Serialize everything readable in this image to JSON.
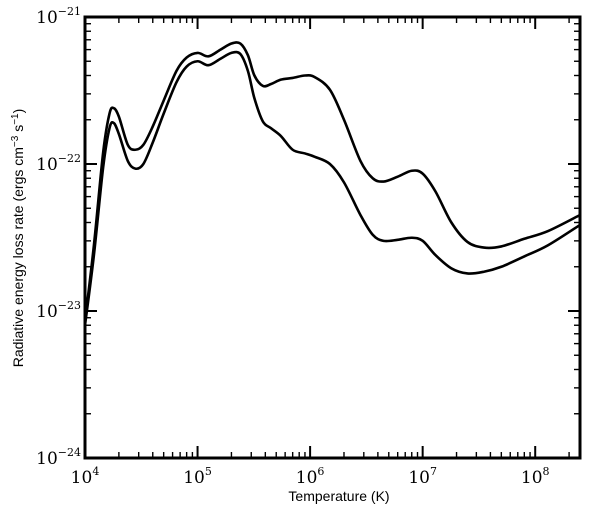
{
  "chart_data": {
    "type": "line",
    "xlabel": "Temperature (K)",
    "ylabel_text": "Radiative energy loss rate (ergs cm",
    "ylabel_exp1": "−3",
    "ylabel_mid": " s",
    "ylabel_exp2": "−1",
    "ylabel_tail": ")",
    "x_scale": "log",
    "y_scale": "log",
    "xlim": [
      10000,
      250000000
    ],
    "ylim": [
      1e-24,
      1e-21
    ],
    "x_ticks": [
      {
        "value": 10000,
        "base": "10",
        "exp": "4"
      },
      {
        "value": 100000,
        "base": "10",
        "exp": "5"
      },
      {
        "value": 1000000,
        "base": "10",
        "exp": "6"
      },
      {
        "value": 10000000,
        "base": "10",
        "exp": "7"
      },
      {
        "value": 100000000,
        "base": "10",
        "exp": "8"
      }
    ],
    "y_ticks": [
      {
        "value": 1e-24,
        "base": "10",
        "exp": "−24"
      },
      {
        "value": 1e-23,
        "base": "10",
        "exp": "−23"
      },
      {
        "value": 1e-22,
        "base": "10",
        "exp": "−22"
      },
      {
        "value": 1e-21,
        "base": "10",
        "exp": "−21"
      }
    ],
    "grid": false,
    "legend": "none",
    "series": [
      {
        "color": "#000000",
        "points": [
          [
            10000,
            8.5e-24
          ],
          [
            12000,
            2.8e-23
          ],
          [
            14500,
            1.2e-22
          ],
          [
            16500,
            2.2e-22
          ],
          [
            18000,
            2.4e-22
          ],
          [
            20000,
            2.1e-22
          ],
          [
            24000,
            1.35e-22
          ],
          [
            28000,
            1.25e-22
          ],
          [
            33000,
            1.35e-22
          ],
          [
            40000,
            1.8e-22
          ],
          [
            50000,
            2.7e-22
          ],
          [
            65000,
            4.3e-22
          ],
          [
            80000,
            5.3e-22
          ],
          [
            100000,
            5.7e-22
          ],
          [
            125000,
            5.4e-22
          ],
          [
            160000,
            6e-22
          ],
          [
            200000,
            6.6e-22
          ],
          [
            240000,
            6.6e-22
          ],
          [
            280000,
            5.5e-22
          ],
          [
            320000,
            4e-22
          ],
          [
            380000,
            3.4e-22
          ],
          [
            450000,
            3.5e-22
          ],
          [
            550000,
            3.75e-22
          ],
          [
            700000,
            3.85e-22
          ],
          [
            900000,
            4e-22
          ],
          [
            1100000,
            3.9e-22
          ],
          [
            1500000,
            3.2e-22
          ],
          [
            2000000,
            2e-22
          ],
          [
            2800000,
            1.05e-22
          ],
          [
            3600000,
            8e-23
          ],
          [
            4500000,
            7.6e-23
          ],
          [
            6000000,
            8.2e-23
          ],
          [
            8000000,
            9e-23
          ],
          [
            10000000,
            8.6e-23
          ],
          [
            13000000,
            6.5e-23
          ],
          [
            18000000,
            4e-23
          ],
          [
            25000000,
            2.95e-23
          ],
          [
            35000000,
            2.7e-23
          ],
          [
            50000000,
            2.75e-23
          ],
          [
            80000000,
            3.1e-23
          ],
          [
            130000000,
            3.5e-23
          ],
          [
            250000000,
            4.5e-23
          ]
        ]
      },
      {
        "color": "#000000",
        "points": [
          [
            10000,
            8e-24
          ],
          [
            12000,
            2.4e-23
          ],
          [
            14500,
            9.5e-23
          ],
          [
            16500,
            1.75e-22
          ],
          [
            18000,
            1.9e-22
          ],
          [
            20000,
            1.6e-22
          ],
          [
            24000,
            1.05e-22
          ],
          [
            28000,
            9.3e-23
          ],
          [
            33000,
            1e-22
          ],
          [
            40000,
            1.4e-22
          ],
          [
            50000,
            2.2e-22
          ],
          [
            65000,
            3.6e-22
          ],
          [
            80000,
            4.6e-22
          ],
          [
            100000,
            5e-22
          ],
          [
            125000,
            4.7e-22
          ],
          [
            160000,
            5.2e-22
          ],
          [
            200000,
            5.7e-22
          ],
          [
            240000,
            5.6e-22
          ],
          [
            280000,
            4.3e-22
          ],
          [
            320000,
            2.8e-22
          ],
          [
            380000,
            1.95e-22
          ],
          [
            450000,
            1.75e-22
          ],
          [
            550000,
            1.55e-22
          ],
          [
            700000,
            1.25e-22
          ],
          [
            900000,
            1.18e-22
          ],
          [
            1100000,
            1.12e-22
          ],
          [
            1500000,
            1e-22
          ],
          [
            2000000,
            7.5e-23
          ],
          [
            2800000,
            4.5e-23
          ],
          [
            3600000,
            3.3e-23
          ],
          [
            4500000,
            3e-23
          ],
          [
            6000000,
            3.05e-23
          ],
          [
            8000000,
            3.15e-23
          ],
          [
            10000000,
            3e-23
          ],
          [
            13000000,
            2.4e-23
          ],
          [
            18000000,
            1.95e-23
          ],
          [
            25000000,
            1.8e-23
          ],
          [
            35000000,
            1.85e-23
          ],
          [
            50000000,
            2e-23
          ],
          [
            80000000,
            2.35e-23
          ],
          [
            130000000,
            2.8e-23
          ],
          [
            250000000,
            3.85e-23
          ]
        ]
      }
    ]
  }
}
